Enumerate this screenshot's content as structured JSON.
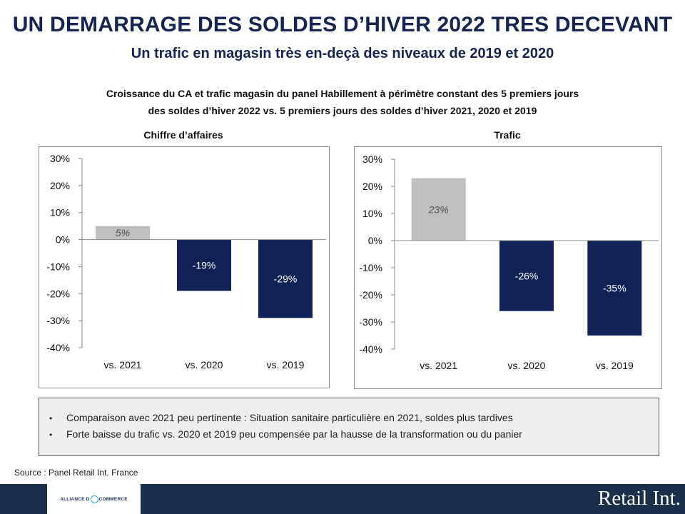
{
  "header": {
    "title": "UN DEMARRAGE DES SOLDES D’HIVER 2022 TRES DECEVANT",
    "subtitle": "Un trafic en magasin très en-deçà des niveaux de 2019 et 2020",
    "description_line1": "Croissance du CA et trafic magasin du panel Habillement à périmètre constant des 5 premiers jours",
    "description_line2": "des soldes d’hiver 2022 vs. 5 premiers jours des soldes d’hiver 2021, 2020 et 2019"
  },
  "chart_data": [
    {
      "type": "bar",
      "title": "Chiffre d’affaires",
      "categories": [
        "vs. 2021",
        "vs. 2020",
        "vs. 2019"
      ],
      "values": [
        5,
        -19,
        -29
      ],
      "data_labels": [
        "5%",
        "-19%",
        "-29%"
      ],
      "bar_colors": [
        "#bfbfbf",
        "#112257",
        "#112257"
      ],
      "ylim": [
        -40,
        30
      ],
      "yticks": [
        30,
        20,
        10,
        0,
        -10,
        -20,
        -30,
        -40
      ],
      "ytick_labels": [
        "30%",
        "20%",
        "10%",
        "0%",
        "-10%",
        "-20%",
        "-30%",
        "-40%"
      ],
      "grid": false,
      "legend": "none"
    },
    {
      "type": "bar",
      "title": "Trafic",
      "categories": [
        "vs. 2021",
        "vs. 2020",
        "vs. 2019"
      ],
      "values": [
        23,
        -26,
        -35
      ],
      "data_labels": [
        "23%",
        "-26%",
        "-35%"
      ],
      "bar_colors": [
        "#bfbfbf",
        "#112257",
        "#112257"
      ],
      "ylim": [
        -40,
        30
      ],
      "yticks": [
        30,
        20,
        10,
        0,
        -10,
        -20,
        -30,
        -40
      ],
      "ytick_labels": [
        "30%",
        "20%",
        "10%",
        "0%",
        "-10%",
        "-20%",
        "-30%",
        "-40%"
      ],
      "grid": false,
      "legend": "none"
    }
  ],
  "notes": {
    "bullet": "•",
    "items": [
      "Comparaison avec 2021 peu pertinente : Situation sanitaire particulière en 2021, soldes plus tardives",
      "Forte baisse du trafic vs. 2020 et 2019 peu compensée par la hausse de la transformation ou du panier"
    ]
  },
  "source": "Source : Panel Retail Int. France",
  "footer": {
    "partner_logo_text_a": "ALLIANCE D",
    "partner_logo_text_b": "COMMERCE",
    "brand": "Retail Int.",
    "background_color": "#1b2f4a"
  }
}
